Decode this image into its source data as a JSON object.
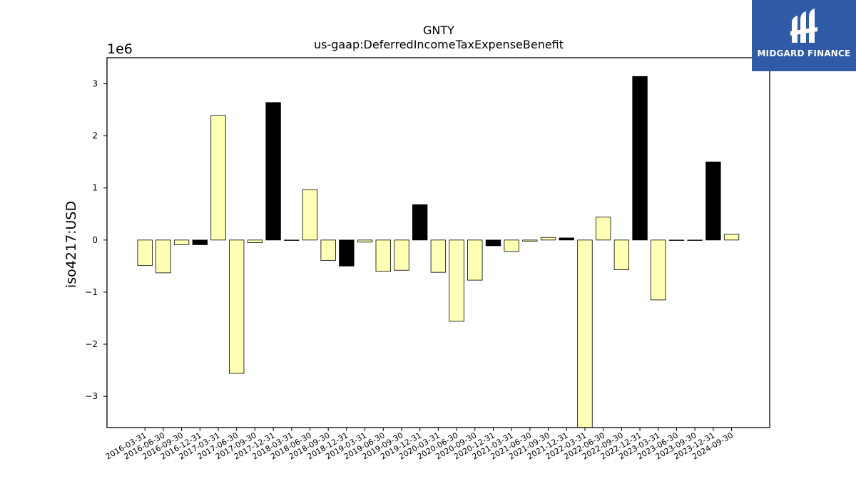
{
  "brand": {
    "name": "MIDGARD FINANCE",
    "bg_color": "#2f5aa8",
    "icon": "midgard-logo-icon"
  },
  "chart_data": {
    "type": "bar",
    "title": "GNTY",
    "subtitle": "us-gaap:DeferredIncomeTaxExpenseBenefit",
    "ylabel": "iso4217:USD",
    "xlabel": "",
    "y_scale_label": "1e6",
    "ylim": [
      -3.6,
      3.5
    ],
    "yticks": [
      -3,
      -2,
      -1,
      0,
      1,
      2,
      3
    ],
    "ytick_labels": [
      "−3",
      "−2",
      "−1",
      "0",
      "1",
      "2",
      "3"
    ],
    "grid": false,
    "legend": "none",
    "colors": {
      "quarter": "#ffffb3",
      "year_end": "#000000",
      "edge": "#000000"
    },
    "categories": [
      "2016-03-31",
      "2016-06-30",
      "2016-09-30",
      "2016-12-31",
      "2017-03-31",
      "2017-06-30",
      "2017-09-30",
      "2017-12-31",
      "2018-03-31",
      "2018-06-30",
      "2018-09-30",
      "2018-12-31",
      "2019-03-31",
      "2019-06-30",
      "2019-09-30",
      "2019-12-31",
      "2020-03-31",
      "2020-06-30",
      "2020-09-30",
      "2020-12-31",
      "2021-03-31",
      "2021-06-30",
      "2021-09-30",
      "2021-12-31",
      "2022-03-31",
      "2022-06-30",
      "2022-09-30",
      "2022-12-31",
      "2023-03-31",
      "2023-06-30",
      "2023-09-30",
      "2023-12-31",
      "2024-09-30"
    ],
    "values": [
      -0.49,
      -0.63,
      -0.09,
      -0.09,
      2.39,
      -2.56,
      -0.05,
      2.64,
      0.0,
      0.97,
      -0.39,
      -0.5,
      -0.04,
      -0.6,
      -0.58,
      0.68,
      -0.62,
      -1.56,
      -0.77,
      -0.11,
      -0.22,
      -0.02,
      0.05,
      0.04,
      -3.7,
      0.44,
      -0.57,
      3.14,
      -1.15,
      0.0,
      0.0,
      1.5,
      0.11
    ],
    "highlight": [
      false,
      false,
      false,
      true,
      false,
      false,
      false,
      true,
      false,
      false,
      false,
      true,
      false,
      false,
      false,
      true,
      false,
      false,
      false,
      true,
      false,
      false,
      false,
      true,
      false,
      false,
      false,
      true,
      false,
      false,
      false,
      true,
      false
    ]
  }
}
